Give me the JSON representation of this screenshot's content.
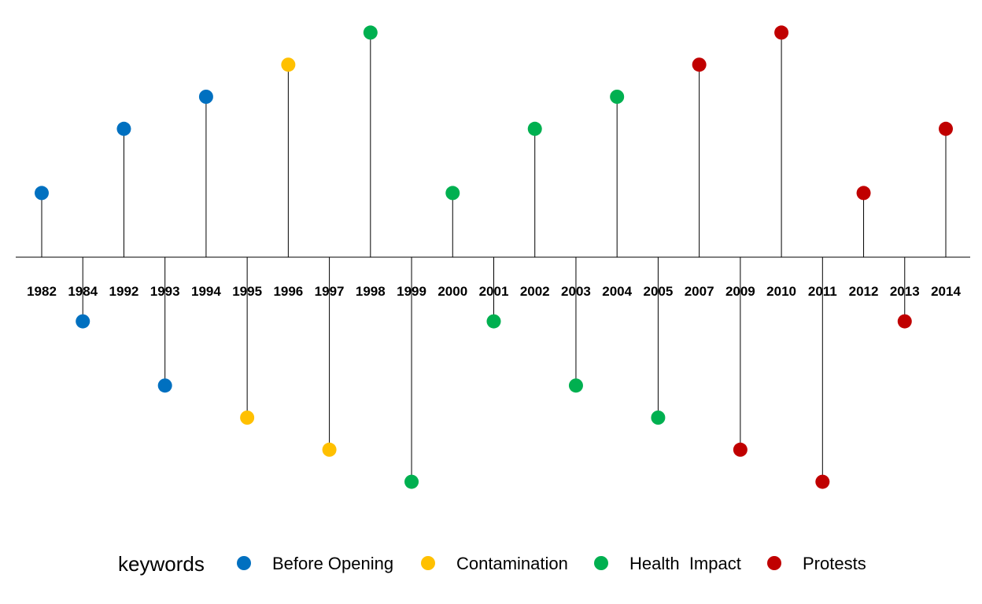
{
  "chart_data": {
    "type": "timeline",
    "title": "",
    "xlabel": "",
    "ylabel": "",
    "grid": false,
    "legend_placement": "bottom",
    "legend_title": "keywords",
    "ylim": [
      -3.5,
      3.5
    ],
    "categories": [
      {
        "name": "Before Opening",
        "color": "#0070C0"
      },
      {
        "name": "Contamination",
        "color": "#FFC000"
      },
      {
        "name": "Health  Impact",
        "color": "#00B050"
      },
      {
        "name": "Protests",
        "color": "#C00000"
      }
    ],
    "events": [
      {
        "year": "1982",
        "value": 2,
        "category": "Before Opening"
      },
      {
        "year": "1984",
        "value": -2,
        "category": "Before Opening"
      },
      {
        "year": "1992",
        "value": 4,
        "category": "Before Opening"
      },
      {
        "year": "1993",
        "value": -4,
        "category": "Before Opening"
      },
      {
        "year": "1994",
        "value": 5,
        "category": "Before Opening"
      },
      {
        "year": "1995",
        "value": -5,
        "category": "Contamination"
      },
      {
        "year": "1996",
        "value": 6,
        "category": "Contamination"
      },
      {
        "year": "1997",
        "value": -6,
        "category": "Contamination"
      },
      {
        "year": "1998",
        "value": 7,
        "category": "Health  Impact"
      },
      {
        "year": "1999",
        "value": -7,
        "category": "Health  Impact"
      },
      {
        "year": "2000",
        "value": 2,
        "category": "Health  Impact"
      },
      {
        "year": "2001",
        "value": -2,
        "category": "Health  Impact"
      },
      {
        "year": "2002",
        "value": 4,
        "category": "Health  Impact"
      },
      {
        "year": "2003",
        "value": -4,
        "category": "Health  Impact"
      },
      {
        "year": "2004",
        "value": 5,
        "category": "Health  Impact"
      },
      {
        "year": "2005",
        "value": -5,
        "category": "Health  Impact"
      },
      {
        "year": "2007",
        "value": 6,
        "category": "Protests"
      },
      {
        "year": "2009",
        "value": -6,
        "category": "Protests"
      },
      {
        "year": "2010",
        "value": 7,
        "category": "Protests"
      },
      {
        "year": "2011",
        "value": -7,
        "category": "Protests"
      },
      {
        "year": "2012",
        "value": 2,
        "category": "Protests"
      },
      {
        "year": "2013",
        "value": -2,
        "category": "Protests"
      },
      {
        "year": "2014",
        "value": 4,
        "category": "Protests"
      }
    ]
  }
}
